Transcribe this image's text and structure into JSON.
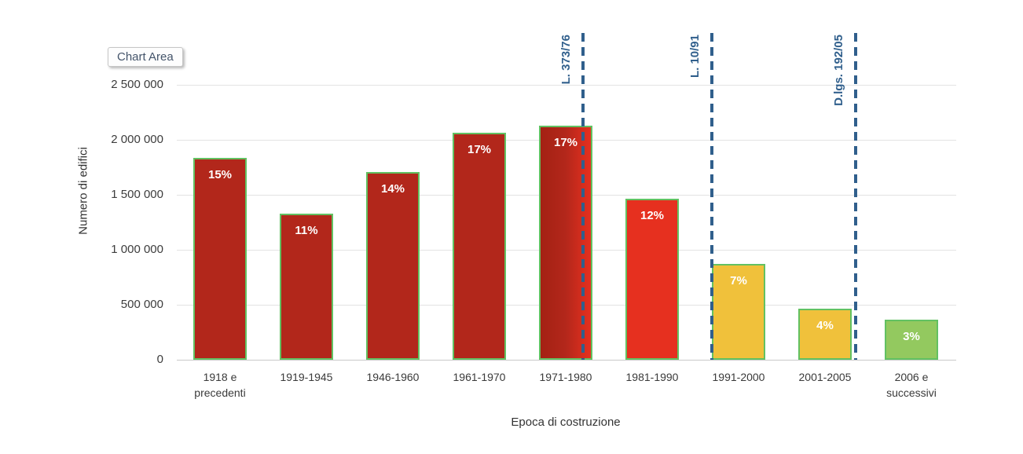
{
  "tooltip": {
    "label": "Chart Area"
  },
  "chart_data": {
    "type": "bar",
    "title": "",
    "xlabel": "Epoca di costruzione",
    "ylabel": "Numero di edifici",
    "ylim": [
      0,
      2500000
    ],
    "grid": true,
    "yticks": [
      {
        "value": 0,
        "label": "0"
      },
      {
        "value": 500000,
        "label": "500 000"
      },
      {
        "value": 1000000,
        "label": "1 000 000"
      },
      {
        "value": 1500000,
        "label": "1 500 000"
      },
      {
        "value": 2000000,
        "label": "2 000 000"
      },
      {
        "value": 2500000,
        "label": "2 500 000"
      }
    ],
    "bars": [
      {
        "category": "1918 e\nprecedenti",
        "value": 1835000,
        "percent": "15%",
        "fill": "#B2271B"
      },
      {
        "category": "1919-1945",
        "value": 1330000,
        "percent": "11%",
        "fill": "#B2271B"
      },
      {
        "category": "1946-1960",
        "value": 1710000,
        "percent": "14%",
        "fill": "#B2271B"
      },
      {
        "category": "1961-1970",
        "value": 2065000,
        "percent": "17%",
        "fill": "#B2271B"
      },
      {
        "category": "1971-1980",
        "value": 2130000,
        "percent": "17%",
        "fill": [
          "#A42113",
          "#B3271B",
          "#E6301F"
        ]
      },
      {
        "category": "1981-1990",
        "value": 1465000,
        "percent": "12%",
        "fill": "#E6301F"
      },
      {
        "category": "1991-2000",
        "value": 870000,
        "percent": "7%",
        "fill": "#F0C13B"
      },
      {
        "category": "2001-2005",
        "value": 465000,
        "percent": "4%",
        "fill": "#F0C13B"
      },
      {
        "category": "2006 e\nsuccessivi",
        "value": 365000,
        "percent": "3%",
        "fill": "#93C95F"
      }
    ],
    "reference_lines": [
      {
        "label": "L. 373/76",
        "x_category_position": 4.7
      },
      {
        "label": "L. 10/91",
        "x_category_position": 6.19
      },
      {
        "label": "D.lgs. 192/05",
        "x_category_position": 7.85
      }
    ],
    "colors": {
      "bar_border": "#62C162",
      "reference_line": "#305F8C",
      "grid": "#E3E3E3",
      "axis_line": "#C9C9C9",
      "value_label": "#FFFFFF",
      "tick_text": "#3C3C3C",
      "tooltip_text": "#44546A"
    }
  }
}
